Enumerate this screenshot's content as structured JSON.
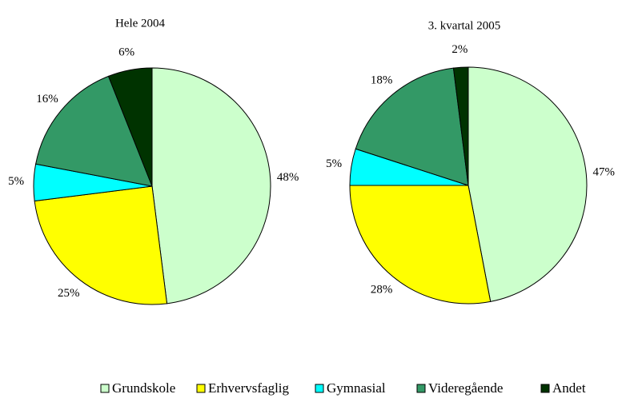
{
  "chart_data": [
    {
      "type": "pie",
      "title": "Hele 2004",
      "categories": [
        "Grundskole",
        "Erhvervsfaglig",
        "Gymnasial",
        "Videregående",
        "Andet"
      ],
      "values": [
        48,
        25,
        5,
        16,
        6
      ],
      "value_labels": [
        "48%",
        "25%",
        "5%",
        "16%",
        "6%"
      ],
      "colors": [
        "#ccffcc",
        "#ffff00",
        "#00ffff",
        "#339966",
        "#003300"
      ]
    },
    {
      "type": "pie",
      "title": "3. kvartal 2005",
      "categories": [
        "Grundskole",
        "Erhvervsfaglig",
        "Gymnasial",
        "Videregående",
        "Andet"
      ],
      "values": [
        47,
        28,
        5,
        18,
        2
      ],
      "value_labels": [
        "47%",
        "28%",
        "5%",
        "18%",
        "2%"
      ],
      "colors": [
        "#ccffcc",
        "#ffff00",
        "#00ffff",
        "#339966",
        "#003300"
      ]
    }
  ]
}
